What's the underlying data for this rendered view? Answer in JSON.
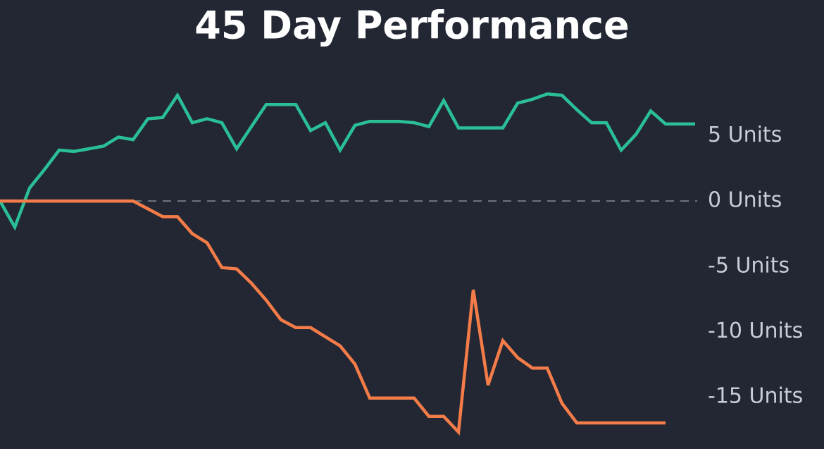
{
  "chart_data": {
    "type": "line",
    "title": "45 Day Performance",
    "x": [
      0,
      1,
      2,
      3,
      4,
      5,
      6,
      7,
      8,
      9,
      10,
      11,
      12,
      13,
      14,
      15,
      16,
      17,
      18,
      19,
      20,
      21,
      22,
      23,
      24,
      25,
      26,
      27,
      28,
      29,
      30,
      31,
      32,
      33,
      34,
      35,
      36,
      37,
      38,
      39,
      40,
      41,
      42,
      43,
      44,
      45,
      46,
      47
    ],
    "xlim": [
      0,
      47
    ],
    "series": [
      {
        "color": "#2bbf97",
        "values": [
          0,
          -2,
          1,
          2.4,
          3.9,
          3.8,
          4.0,
          4.2,
          4.9,
          4.7,
          6.3,
          6.4,
          8.1,
          6.0,
          6.3,
          6.0,
          4.0,
          5.7,
          7.4,
          7.4,
          7.4,
          5.4,
          6.0,
          3.9,
          5.8,
          6.1,
          6.1,
          6.1,
          6.0,
          5.7,
          7.7,
          5.6,
          5.6,
          5.6,
          5.6,
          7.5,
          7.8,
          8.2,
          8.1,
          7.0,
          6.0,
          6.0,
          3.9,
          5.1,
          6.9,
          5.9,
          5.9,
          5.9
        ]
      },
      {
        "color": "#f47c48",
        "values": [
          0,
          0,
          0,
          0,
          0,
          0,
          0,
          0,
          0,
          0,
          -0.6,
          -1.2,
          -1.2,
          -2.5,
          -3.2,
          -5.1,
          -5.2,
          -6.3,
          -7.6,
          -9.1,
          -9.7,
          -9.7,
          -10.4,
          -11.1,
          -12.5,
          -15.1,
          -15.1,
          -15.1,
          -15.1,
          -16.5,
          -16.5,
          -17.7,
          -6.8,
          -14.1,
          -10.7,
          -12.0,
          -12.8,
          -12.8,
          -15.5,
          -17.0,
          -17.0,
          -17.0,
          -17.0,
          -17.0,
          -17.0,
          -17.0,
          null,
          null
        ]
      }
    ],
    "ylim": [
      -19,
      11
    ],
    "yticks": [
      {
        "value": 5,
        "label": "5 Units"
      },
      {
        "value": 0,
        "label": "0 Units"
      },
      {
        "value": -5,
        "label": "-5 Units"
      },
      {
        "value": -10,
        "label": "-10 Units"
      },
      {
        "value": -15,
        "label": "-15 Units"
      }
    ],
    "reference_line": 0
  }
}
